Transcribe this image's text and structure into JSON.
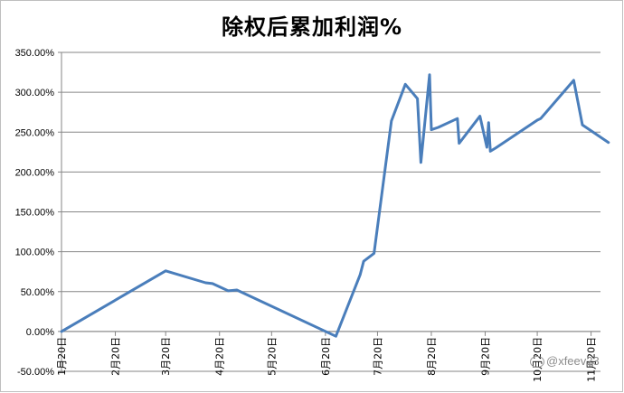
{
  "chart_data": {
    "type": "line",
    "title": "除权后累加利润%",
    "xlabel": "",
    "ylabel": "",
    "ylim": [
      -50,
      350
    ],
    "y_ticks": [
      "-50.00%",
      "0.00%",
      "50.00%",
      "100.00%",
      "150.00%",
      "200.00%",
      "250.00%",
      "300.00%",
      "350.00%"
    ],
    "x_tick_labels": [
      "1月20日",
      "2月20日",
      "3月20日",
      "4月20日",
      "5月20日",
      "6月20日",
      "7月20日",
      "8月20日",
      "9月20日",
      "10月20日",
      "11月20日"
    ],
    "x_ticks": [
      "2020-01-20",
      "2020-02-20",
      "2020-03-20",
      "2020-04-20",
      "2020-05-20",
      "2020-06-20",
      "2020-07-20",
      "2020-08-20",
      "2020-09-20",
      "2020-10-20",
      "2020-11-20"
    ],
    "grid": true,
    "line_color": "#4a7ebb",
    "series": [
      {
        "x": [
          "2020-01-20",
          "2020-03-20",
          "2020-04-12",
          "2020-04-16",
          "2020-04-25",
          "2020-04-30",
          "2020-06-26",
          "2020-07-10",
          "2020-07-12",
          "2020-07-18",
          "2020-07-28",
          "2020-08-05",
          "2020-08-12",
          "2020-08-14",
          "2020-08-19",
          "2020-08-20",
          "2020-08-24",
          "2020-09-04",
          "2020-09-05",
          "2020-09-17",
          "2020-09-21",
          "2020-09-22",
          "2020-09-23",
          "2020-09-26",
          "2020-10-20",
          "2020-10-22",
          "2020-11-10",
          "2020-11-15",
          "2020-11-30"
        ],
        "values": [
          0,
          76,
          61,
          60,
          51,
          52,
          -6,
          71,
          88,
          98,
          264,
          310,
          292,
          212,
          322,
          253,
          256,
          267,
          236,
          270,
          231,
          262,
          226,
          230,
          265,
          267,
          315,
          259,
          237
        ]
      }
    ]
  },
  "watermark": {
    "text": "@xfeev23"
  }
}
